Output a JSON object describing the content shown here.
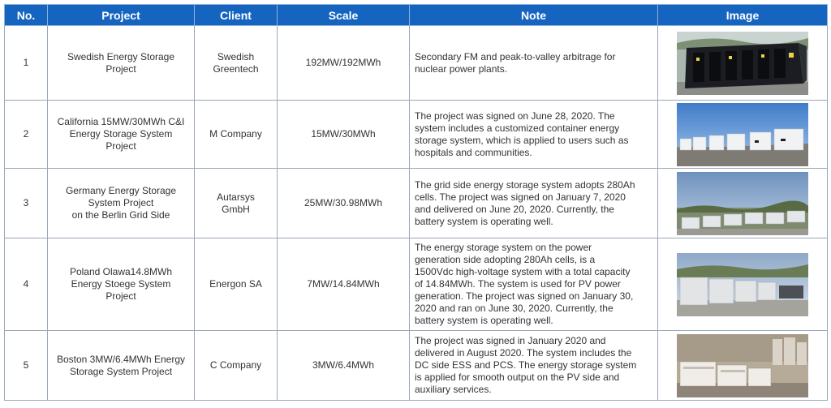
{
  "headers": [
    "No.",
    "Project",
    "Client",
    "Scale",
    "Note",
    "Image"
  ],
  "rows": [
    {
      "no": "1",
      "project": "Swedish Energy Storage\nProject",
      "client": "Swedish\nGreentech",
      "scale": "192MW/192MWh",
      "note": "Secondary FM and peak-to-valley arbitrage for\nnuclear power plants.",
      "image": "black-storage-container-photo"
    },
    {
      "no": "2",
      "project": "California 15MW/30MWh C&I\nEnergy Storage System\nProject",
      "client": "M Company",
      "scale": "15MW/30MWh",
      "note": "The project was signed on June 28, 2020. The\nsystem includes a customized container energy\nstorage system, which is applied to users such as\nhospitals and communities.",
      "image": "white-cabinets-sky-photo"
    },
    {
      "no": "3",
      "project": "Germany Energy Storage\nSystem Project\non the Berlin Grid Side",
      "client": "Autarsys\nGmbH",
      "scale": "25MW/30.98MWh",
      "note": "The grid side energy storage system adopts 280Ah\ncells. The project was signed on January 7, 2020\nand delivered on June 20, 2020. Currently, the\nbattery system is operating well.",
      "image": "grid-side-storage-field-photo"
    },
    {
      "no": "4",
      "project": "Poland Olawa14.8MWh\nEnergy Stoege System\nProject",
      "client": "Energon SA",
      "scale": "7MW/14.84MWh",
      "note": "The energy storage system on the power\ngeneration side adopting 280Ah cells,  is a\n1500Vdc high-voltage system with a total capacity\nof 14.84MWh. The system is used for PV power\ngeneration. The project was signed on January 30,\n2020 and ran on June 30, 2020. Currently, the\nbattery system is operating well.",
      "image": "pv-storage-cabinets-photo"
    },
    {
      "no": "5",
      "project": "Boston 3MW/6.4MWh Energy\nStorage System Project",
      "client": "C Company",
      "scale": "3MW/6.4MWh",
      "note": "The project was signed in January 2020 and\ndelivered in August 2020. The system includes the\nDC side ESS and PCS. The energy storage system\nis applied for smooth output on the PV side and\nauxiliary services.",
      "image": "industrial-site-storage-photo"
    }
  ],
  "colors": {
    "header_bg": "#1565c0",
    "header_text": "#ffffff",
    "border": "#9aa7b8",
    "text": "#333333"
  }
}
